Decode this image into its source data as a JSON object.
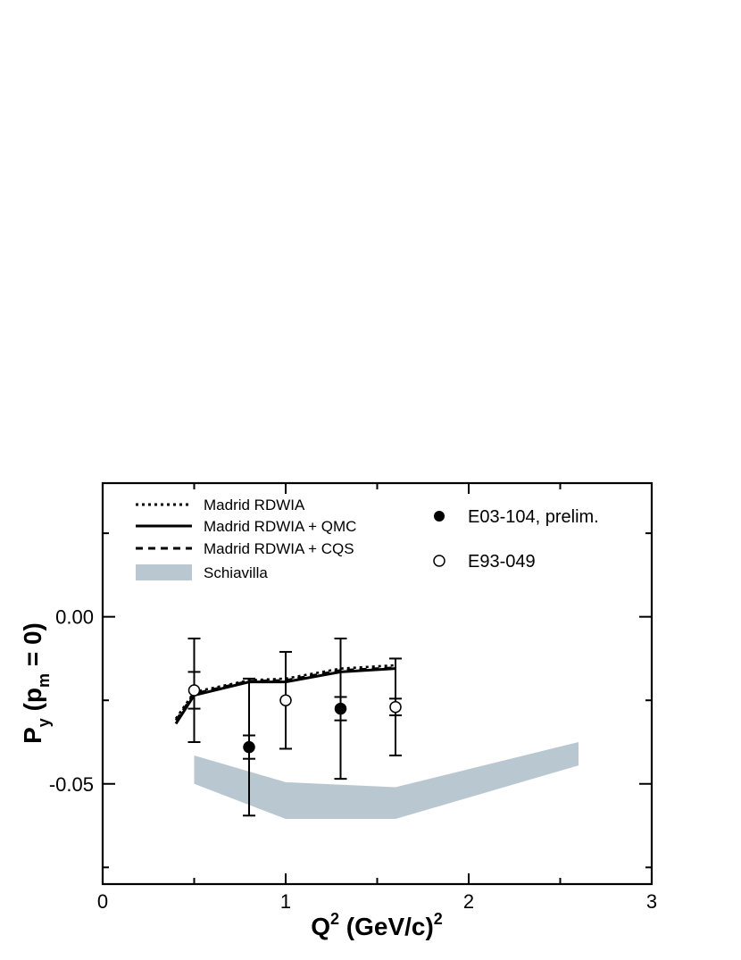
{
  "chart_data": {
    "type": "scatter",
    "xlabel": {
      "base": "Q",
      "sup": "2",
      "unit": "(GeV/c)",
      "unit_sup": "2"
    },
    "ylabel": {
      "base": "P",
      "sub": "y",
      "mid": "(p",
      "mid_sub": "m",
      "tail": "= 0)"
    },
    "xlim": [
      0,
      3
    ],
    "ylim": [
      -0.08,
      0.04
    ],
    "x_ticks": [
      {
        "value": 0,
        "label": "0"
      },
      {
        "value": 1,
        "label": "1"
      },
      {
        "value": 2,
        "label": "2"
      },
      {
        "value": 3,
        "label": "3"
      }
    ],
    "y_ticks": [
      {
        "value": 0.0,
        "label": "0.00"
      },
      {
        "value": -0.05,
        "label": "-0.05"
      }
    ],
    "y_minor_ticks": [
      0.025,
      -0.025,
      -0.075
    ],
    "x_minor_ticks": [
      0.5,
      1.5,
      2.5
    ],
    "grid": false,
    "legend_position": "top-left",
    "series": [
      {
        "name": "Madrid RDWIA",
        "style": "dotted",
        "x": [
          0.4,
          0.5,
          0.8,
          1.0,
          1.3,
          1.6
        ],
        "y": [
          -0.0305,
          -0.0225,
          -0.019,
          -0.0185,
          -0.0155,
          -0.0145
        ]
      },
      {
        "name": "Madrid RDWIA + QMC",
        "style": "solid",
        "x": [
          0.4,
          0.5,
          0.8,
          1.0,
          1.3,
          1.6
        ],
        "y": [
          -0.032,
          -0.0235,
          -0.0195,
          -0.0195,
          -0.0165,
          -0.0155
        ]
      },
      {
        "name": "Madrid RDWIA + CQS",
        "style": "dashed",
        "x": [
          0.4,
          0.5,
          0.8,
          1.0,
          1.3,
          1.6
        ],
        "y": [
          -0.031,
          -0.023,
          -0.0192,
          -0.019,
          -0.016,
          -0.0152
        ]
      },
      {
        "name": "Schiavilla",
        "style": "band",
        "x": [
          0.5,
          1.0,
          1.6,
          2.6
        ],
        "upper": [
          -0.0415,
          -0.0495,
          -0.051,
          -0.0375
        ],
        "lower": [
          -0.05,
          -0.0605,
          -0.0605,
          -0.0445
        ]
      },
      {
        "name": "E03-104, prelim.",
        "style": "filled-circle",
        "points": [
          {
            "x": 0.8,
            "y": -0.039,
            "err": 0.0205
          },
          {
            "x": 1.3,
            "y": -0.0275,
            "err": 0.021
          }
        ]
      },
      {
        "name": "E93-049",
        "style": "open-circle",
        "points": [
          {
            "x": 0.5,
            "y": -0.022,
            "err": 0.0155
          },
          {
            "x": 1.0,
            "y": -0.025,
            "err": 0.0145
          },
          {
            "x": 1.6,
            "y": -0.027,
            "err": 0.0145
          }
        ]
      }
    ],
    "inner_errors": [
      {
        "x": 0.5,
        "err": 0.0055
      },
      {
        "x": 0.8,
        "err": 0.0035
      },
      {
        "x": 1.3,
        "err": 0.0035
      },
      {
        "x": 1.6,
        "err": 0.0025
      }
    ],
    "colors": {
      "band": "#b9c7d1",
      "line": "#000000"
    }
  }
}
